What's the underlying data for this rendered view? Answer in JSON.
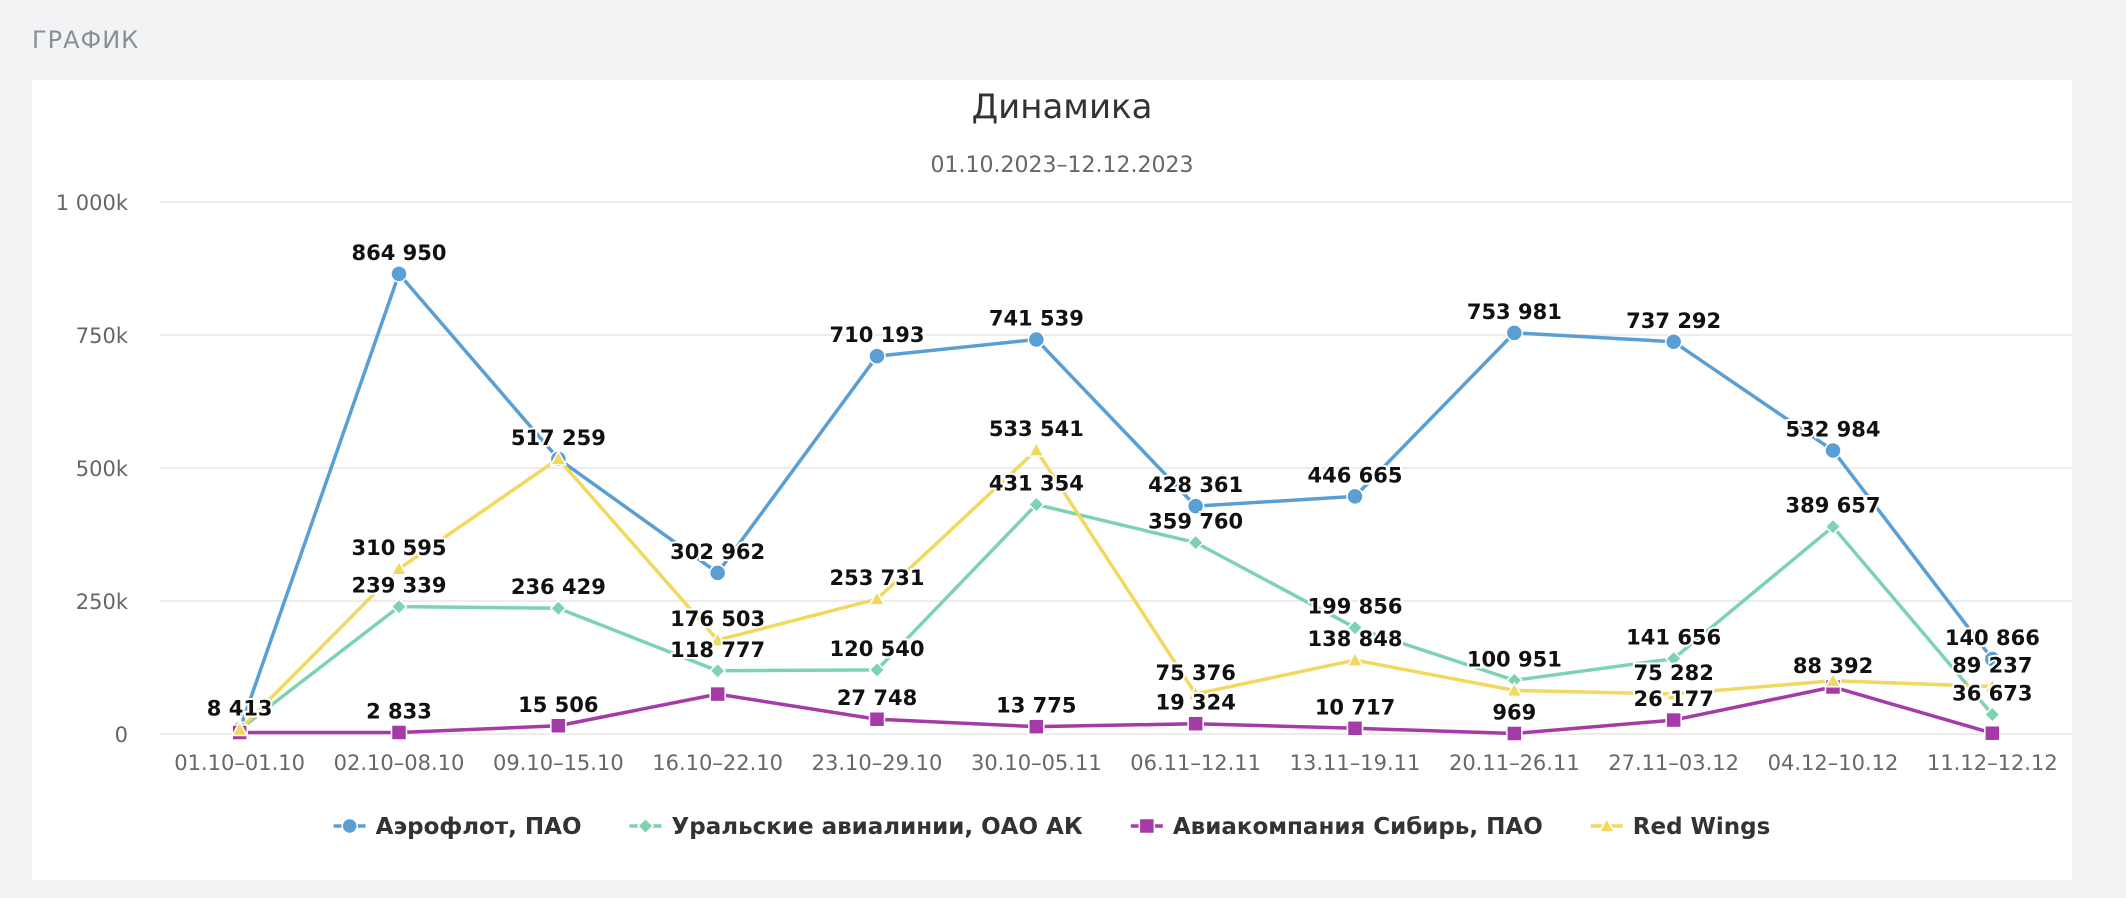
{
  "section": {
    "label": "ГРАФИК"
  },
  "chart_data": {
    "type": "line",
    "title": "Динамика",
    "subtitle": "01.10.2023–12.12.2023",
    "xlabel": "",
    "ylabel": "",
    "ylim": [
      0,
      1000000
    ],
    "yticks": [
      {
        "value": 0,
        "label": "0"
      },
      {
        "value": 250000,
        "label": "250k"
      },
      {
        "value": 500000,
        "label": "500k"
      },
      {
        "value": 750000,
        "label": "750k"
      },
      {
        "value": 1000000,
        "label": "1 000k"
      }
    ],
    "grid": true,
    "legend_position": "bottom",
    "categories": [
      "01.10–01.10",
      "02.10–08.10",
      "09.10–15.10",
      "16.10–22.10",
      "23.10–29.10",
      "30.10–05.11",
      "06.11–12.11",
      "13.11–19.11",
      "20.11–26.11",
      "27.11–03.12",
      "04.12–10.12",
      "11.12–12.12"
    ],
    "series": [
      {
        "name": "Аэрофлот, ПАО",
        "color": "#5a9fd4",
        "marker": "circle",
        "values": [
          8413,
          864950,
          517259,
          302962,
          710193,
          741539,
          428361,
          446665,
          753981,
          737292,
          532984,
          140866
        ],
        "labels": [
          null,
          "864 950",
          null,
          "302 962",
          "710 193",
          "741 539",
          "428 361",
          "446 665",
          "753 981",
          "737 292",
          "532 984",
          "140 866"
        ]
      },
      {
        "name": "Уральские авиалинии, ОАО АК",
        "color": "#7dd3b0",
        "marker": "diamond",
        "values": [
          8413,
          239339,
          236429,
          118777,
          120540,
          431354,
          359760,
          199856,
          100951,
          141656,
          389657,
          36673
        ],
        "labels": [
          null,
          "239 339",
          "236 429",
          "118 777",
          "120 540",
          "431 354",
          "359 760",
          "199 856",
          "100 951",
          "141 656",
          "389 657",
          "36 673"
        ]
      },
      {
        "name": "Авиакомпания Сибирь, ПАО",
        "color": "#a53ba6",
        "marker": "square",
        "values": [
          2833,
          2833,
          15506,
          75000,
          27748,
          13775,
          19324,
          10717,
          969,
          26177,
          88392,
          1500
        ],
        "labels": [
          null,
          "2 833",
          "15 506",
          null,
          "27 748",
          "13 775",
          "19 324",
          "10 717",
          "969",
          "26 177",
          "88 392",
          null
        ]
      },
      {
        "name": "Red Wings",
        "color": "#f2d85e",
        "marker": "triangle",
        "values": [
          8413,
          310595,
          517259,
          176503,
          253731,
          533541,
          75376,
          138848,
          82000,
          75282,
          100000,
          89237
        ],
        "labels": [
          "8 413",
          "310 595",
          "517 259",
          "176 503",
          "253 731",
          "533 541",
          "75 376",
          "138 848",
          null,
          "75 282",
          null,
          "89 237"
        ]
      }
    ]
  }
}
